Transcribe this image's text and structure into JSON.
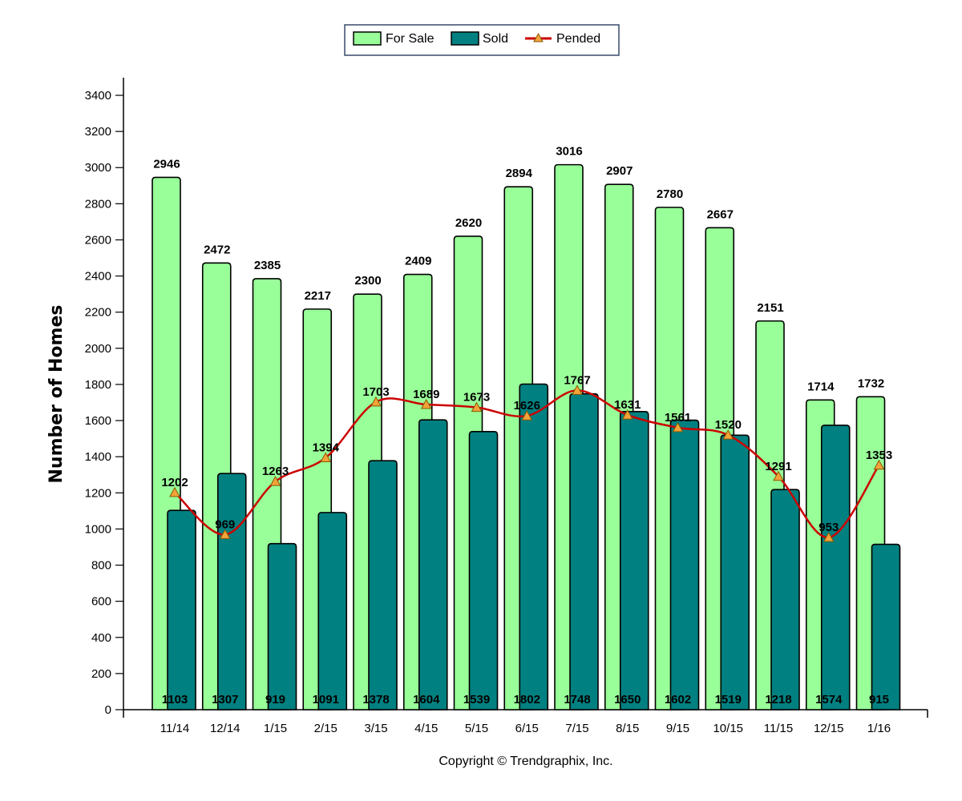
{
  "chart_data": {
    "type": "bar",
    "categories": [
      "11/14",
      "12/14",
      "1/15",
      "2/15",
      "3/15",
      "4/15",
      "5/15",
      "6/15",
      "7/15",
      "8/15",
      "9/15",
      "10/15",
      "11/15",
      "12/15",
      "1/16"
    ],
    "series": [
      {
        "name": "For Sale",
        "kind": "bar",
        "color": "#99ff99",
        "values": [
          2946,
          2472,
          2385,
          2217,
          2300,
          2409,
          2620,
          2894,
          3016,
          2907,
          2780,
          2667,
          2151,
          1714,
          1732
        ]
      },
      {
        "name": "Sold",
        "kind": "bar",
        "color": "#008080",
        "values": [
          1103,
          1307,
          919,
          1091,
          1378,
          1604,
          1539,
          1802,
          1748,
          1650,
          1602,
          1519,
          1218,
          1574,
          915
        ]
      },
      {
        "name": "Pended",
        "kind": "line",
        "color": "#cc0000",
        "marker_color": "#f2a33a",
        "values": [
          1202,
          969,
          1263,
          1394,
          1703,
          1689,
          1673,
          1626,
          1767,
          1631,
          1561,
          1520,
          1291,
          953,
          1353
        ]
      }
    ],
    "ylabel": "Number of Homes",
    "ylim": [
      0,
      3400
    ],
    "yticks": [
      0,
      200,
      400,
      600,
      800,
      1000,
      1200,
      1400,
      1600,
      1800,
      2000,
      2200,
      2400,
      2600,
      2800,
      3000,
      3200,
      3400
    ],
    "legend_position": "top-center",
    "grid": false
  },
  "footer": {
    "copyright": "Copyright © Trendgraphix, Inc."
  }
}
